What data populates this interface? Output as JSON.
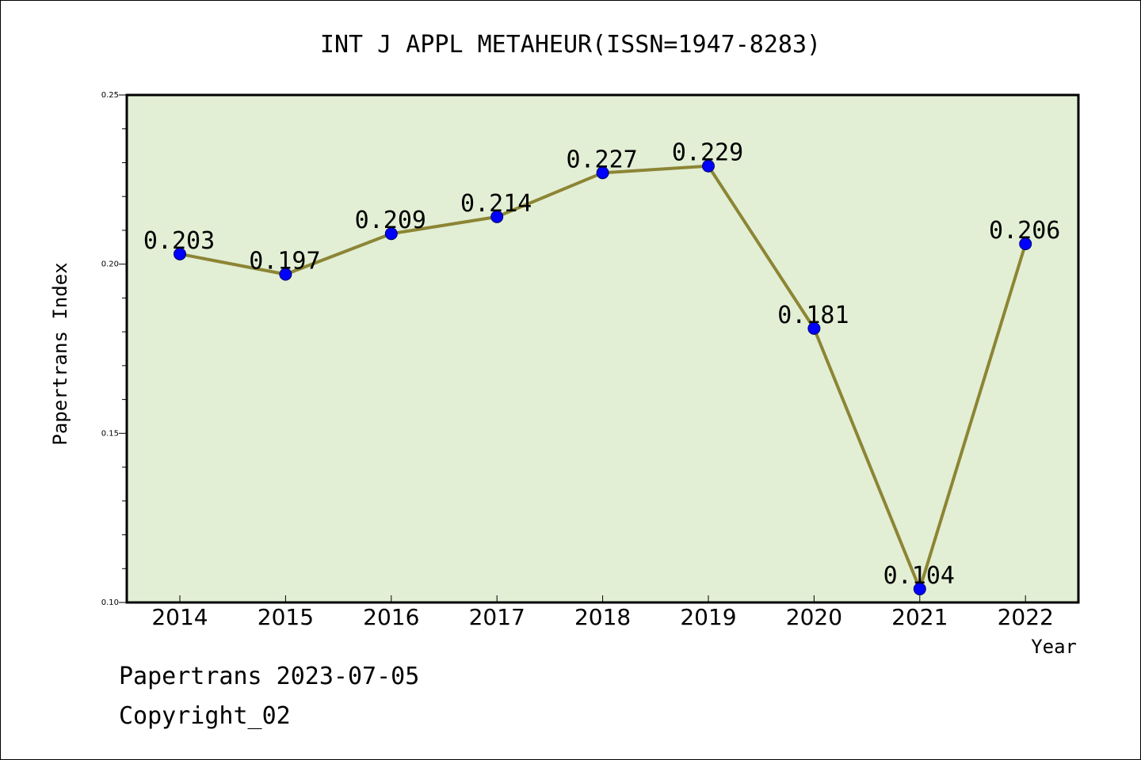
{
  "colors": {
    "background": "#ffffff",
    "plot_background": "#e2efd5",
    "line": "#8c8534",
    "marker": "#0000ff"
  },
  "footer": {
    "line1": "Papertrans 2023-07-05",
    "line2": "Copyright_02"
  },
  "chart_data": {
    "type": "line",
    "title": "INT J APPL METAHEUR(ISSN=1947-8283)",
    "xlabel": "Year",
    "ylabel": "Papertrans Index",
    "categories": [
      "2014",
      "2015",
      "2016",
      "2017",
      "2018",
      "2019",
      "2020",
      "2021",
      "2022"
    ],
    "values": [
      0.203,
      0.197,
      0.209,
      0.214,
      0.227,
      0.229,
      0.181,
      0.104,
      0.206
    ],
    "data_labels": [
      "0.203",
      "0.197",
      "0.209",
      "0.214",
      "0.227",
      "0.229",
      "0.181",
      "0.104",
      "0.206"
    ],
    "ylim": [
      0.1,
      0.25
    ],
    "yticks": [
      0.1,
      0.15,
      0.2,
      0.25
    ],
    "ytick_labels": [
      "0.10",
      "0.15",
      "0.20",
      "0.25"
    ],
    "yminor_step": 0.01,
    "grid": false,
    "legend": "none"
  }
}
